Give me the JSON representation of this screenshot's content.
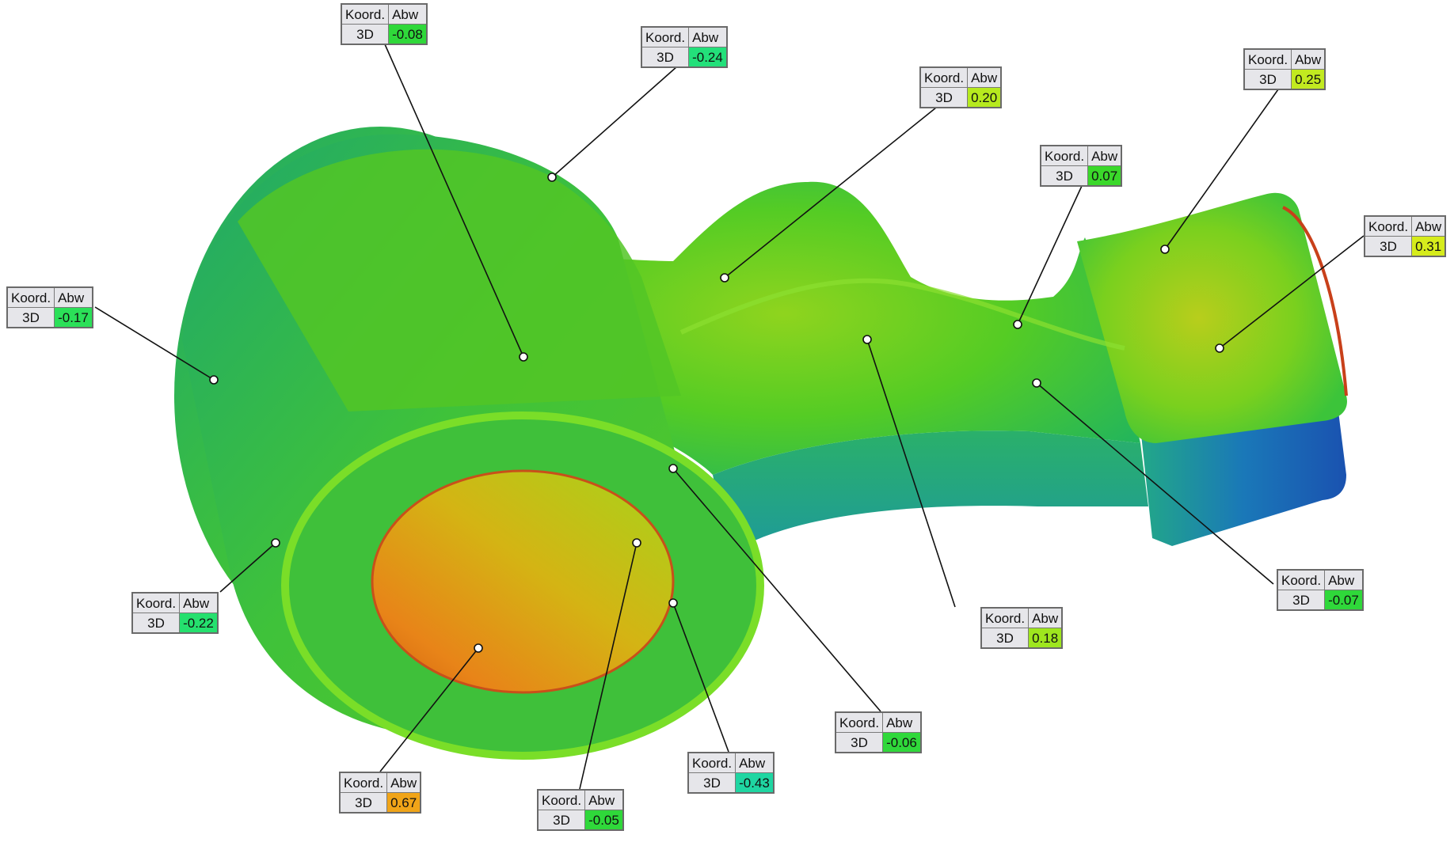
{
  "callouts": [
    {
      "id": "c1",
      "header_coord": "Koord.",
      "header_dev": "Abw",
      "axis": "3D",
      "value": "-0.08",
      "color": "#2fd83a"
    },
    {
      "id": "c2",
      "header_coord": "Koord.",
      "header_dev": "Abw",
      "axis": "3D",
      "value": "-0.24",
      "color": "#23e07a"
    },
    {
      "id": "c3",
      "header_coord": "Koord.",
      "header_dev": "Abw",
      "axis": "3D",
      "value": "0.20",
      "color": "#b6ea1e"
    },
    {
      "id": "c4",
      "header_coord": "Koord.",
      "header_dev": "Abw",
      "axis": "3D",
      "value": "0.07",
      "color": "#3ad82a"
    },
    {
      "id": "c5",
      "header_coord": "Koord.",
      "header_dev": "Abw",
      "axis": "3D",
      "value": "0.25",
      "color": "#c2ea20"
    },
    {
      "id": "c6",
      "header_coord": "Koord.",
      "header_dev": "Abw",
      "axis": "3D",
      "value": "0.31",
      "color": "#d6ec1c"
    },
    {
      "id": "c7",
      "header_coord": "Koord.",
      "header_dev": "Abw",
      "axis": "3D",
      "value": "-0.17",
      "color": "#2be058"
    },
    {
      "id": "c8",
      "header_coord": "Koord.",
      "header_dev": "Abw",
      "axis": "3D",
      "value": "-0.22",
      "color": "#25e06e"
    },
    {
      "id": "c9",
      "header_coord": "Koord.",
      "header_dev": "Abw",
      "axis": "3D",
      "value": "-0.07",
      "color": "#2fd83a"
    },
    {
      "id": "c10",
      "header_coord": "Koord.",
      "header_dev": "Abw",
      "axis": "3D",
      "value": "0.18",
      "color": "#9ee61e"
    },
    {
      "id": "c11",
      "header_coord": "Koord.",
      "header_dev": "Abw",
      "axis": "3D",
      "value": "-0.06",
      "color": "#2fd83a"
    },
    {
      "id": "c12",
      "header_coord": "Koord.",
      "header_dev": "Abw",
      "axis": "3D",
      "value": "-0.43",
      "color": "#1fd6a2"
    },
    {
      "id": "c13",
      "header_coord": "Koord.",
      "header_dev": "Abw",
      "axis": "3D",
      "value": "0.67",
      "color": "#f0a418"
    },
    {
      "id": "c14",
      "header_coord": "Koord.",
      "header_dev": "Abw",
      "axis": "3D",
      "value": "-0.05",
      "color": "#2fd83a"
    }
  ]
}
